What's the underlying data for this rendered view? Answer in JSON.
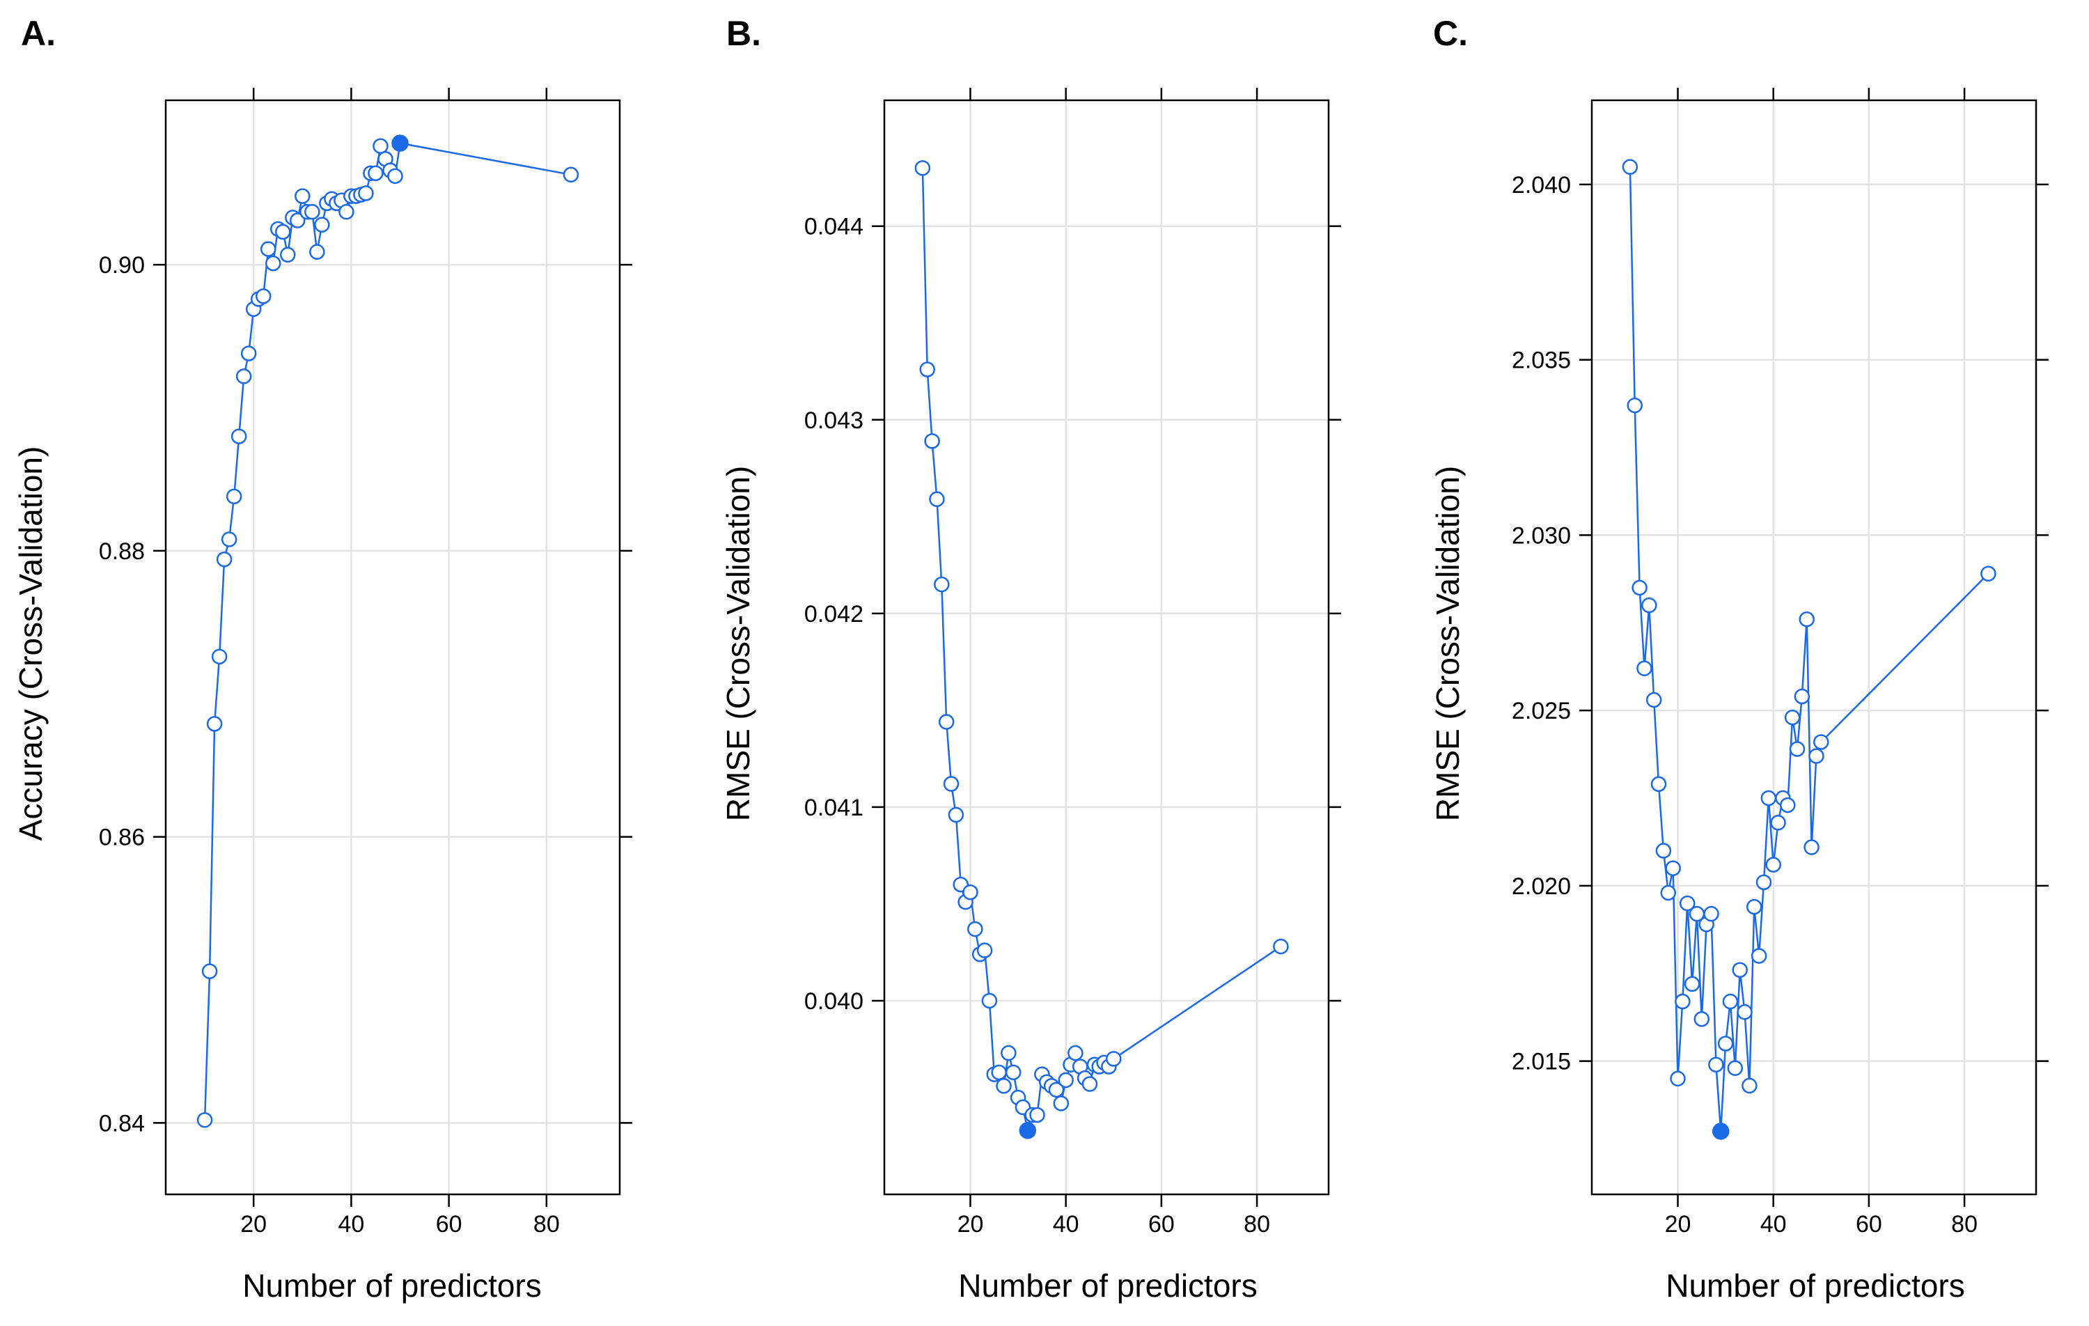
{
  "chart_data": [
    {
      "type": "line",
      "panel": "A.",
      "xlabel": "Number of predictors",
      "ylabel": "Accuracy (Cross-Validation)",
      "xlim": [
        2,
        95
      ],
      "ylim": [
        0.835,
        0.9115
      ],
      "xticks": [
        20,
        40,
        60,
        80
      ],
      "yticks": [
        0.84,
        0.86,
        0.88,
        0.9
      ],
      "ytick_labels": [
        "0.84",
        "0.86",
        "0.88",
        "0.90"
      ],
      "x": [
        10,
        11,
        12,
        13,
        14,
        15,
        16,
        17,
        18,
        19,
        20,
        21,
        22,
        23,
        24,
        25,
        26,
        27,
        28,
        29,
        30,
        31,
        32,
        33,
        34,
        35,
        36,
        37,
        38,
        39,
        40,
        41,
        42,
        43,
        44,
        45,
        46,
        47,
        48,
        49,
        50,
        85
      ],
      "y": [
        0.8402,
        0.8506,
        0.8679,
        0.8726,
        0.8794,
        0.8808,
        0.8838,
        0.888,
        0.8922,
        0.8938,
        0.8969,
        0.8976,
        0.8978,
        0.9011,
        0.9001,
        0.9025,
        0.9023,
        0.9007,
        0.9033,
        0.9031,
        0.9048,
        0.9037,
        0.9037,
        0.9009,
        0.9028,
        0.9043,
        0.9046,
        0.9043,
        0.9045,
        0.9037,
        0.9048,
        0.9048,
        0.9049,
        0.905,
        0.9064,
        0.9064,
        0.9083,
        0.9074,
        0.9066,
        0.9062,
        0.9085,
        0.9063
      ],
      "highlight": {
        "x": 50,
        "y": 0.9085
      },
      "color": "#1a6ae8"
    },
    {
      "type": "line",
      "panel": "B.",
      "xlabel": "Number of predictors",
      "ylabel": "RMSE (Cross-Validation)",
      "xlim": [
        2,
        95
      ],
      "ylim": [
        0.039,
        0.04465
      ],
      "xticks": [
        20,
        40,
        60,
        80
      ],
      "yticks": [
        0.04,
        0.041,
        0.042,
        0.043,
        0.044
      ],
      "ytick_labels": [
        "0.040",
        "0.041",
        "0.042",
        "0.043",
        "0.044"
      ],
      "x": [
        10,
        11,
        12,
        13,
        14,
        15,
        16,
        17,
        18,
        19,
        20,
        21,
        22,
        23,
        24,
        25,
        26,
        27,
        28,
        29,
        30,
        31,
        32,
        33,
        34,
        35,
        36,
        37,
        38,
        39,
        40,
        41,
        42,
        43,
        44,
        45,
        46,
        47,
        48,
        49,
        50,
        85
      ],
      "y": [
        0.0443,
        0.04326,
        0.04289,
        0.04259,
        0.04215,
        0.04144,
        0.04112,
        0.04096,
        0.0406,
        0.04051,
        0.04056,
        0.04037,
        0.04024,
        0.04026,
        0.04,
        0.03962,
        0.03963,
        0.03956,
        0.03973,
        0.03963,
        0.0395,
        0.03945,
        0.03933,
        0.03941,
        0.03941,
        0.03962,
        0.03958,
        0.03956,
        0.03954,
        0.03947,
        0.03959,
        0.03967,
        0.03973,
        0.03966,
        0.0396,
        0.03957,
        0.03967,
        0.03966,
        0.03968,
        0.03966,
        0.0397,
        0.04028
      ],
      "highlight": {
        "x": 32,
        "y": 0.03933
      },
      "color": "#1a6ae8"
    },
    {
      "type": "line",
      "panel": "C.",
      "xlabel": "Number of predictors",
      "ylabel": "RMSE (Cross-Validation)",
      "xlim": [
        2,
        95
      ],
      "ylim": [
        2.0112,
        2.0424
      ],
      "xticks": [
        20,
        40,
        60,
        80
      ],
      "yticks": [
        2.015,
        2.02,
        2.025,
        2.03,
        2.035,
        2.04
      ],
      "ytick_labels": [
        "2.015",
        "2.020",
        "2.025",
        "2.030",
        "2.035",
        "2.040"
      ],
      "x": [
        10,
        11,
        12,
        13,
        14,
        15,
        16,
        17,
        18,
        19,
        20,
        21,
        22,
        23,
        24,
        25,
        26,
        27,
        28,
        29,
        30,
        31,
        32,
        33,
        34,
        35,
        36,
        37,
        38,
        39,
        40,
        41,
        42,
        43,
        44,
        45,
        46,
        47,
        48,
        49,
        50,
        85
      ],
      "y": [
        2.0405,
        2.0337,
        2.0285,
        2.0262,
        2.028,
        2.0253,
        2.0229,
        2.021,
        2.0198,
        2.0205,
        2.0145,
        2.0167,
        2.0195,
        2.0172,
        2.0192,
        2.0162,
        2.0189,
        2.0192,
        2.0149,
        2.013,
        2.0155,
        2.0167,
        2.0148,
        2.0176,
        2.0164,
        2.0143,
        2.0194,
        2.018,
        2.0201,
        2.0225,
        2.0206,
        2.0218,
        2.0225,
        2.0223,
        2.0248,
        2.0239,
        2.0254,
        2.0276,
        2.0211,
        2.0237,
        2.0241,
        2.0289
      ],
      "highlight": {
        "x": 29,
        "y": 2.013
      },
      "color": "#1a6ae8"
    }
  ]
}
